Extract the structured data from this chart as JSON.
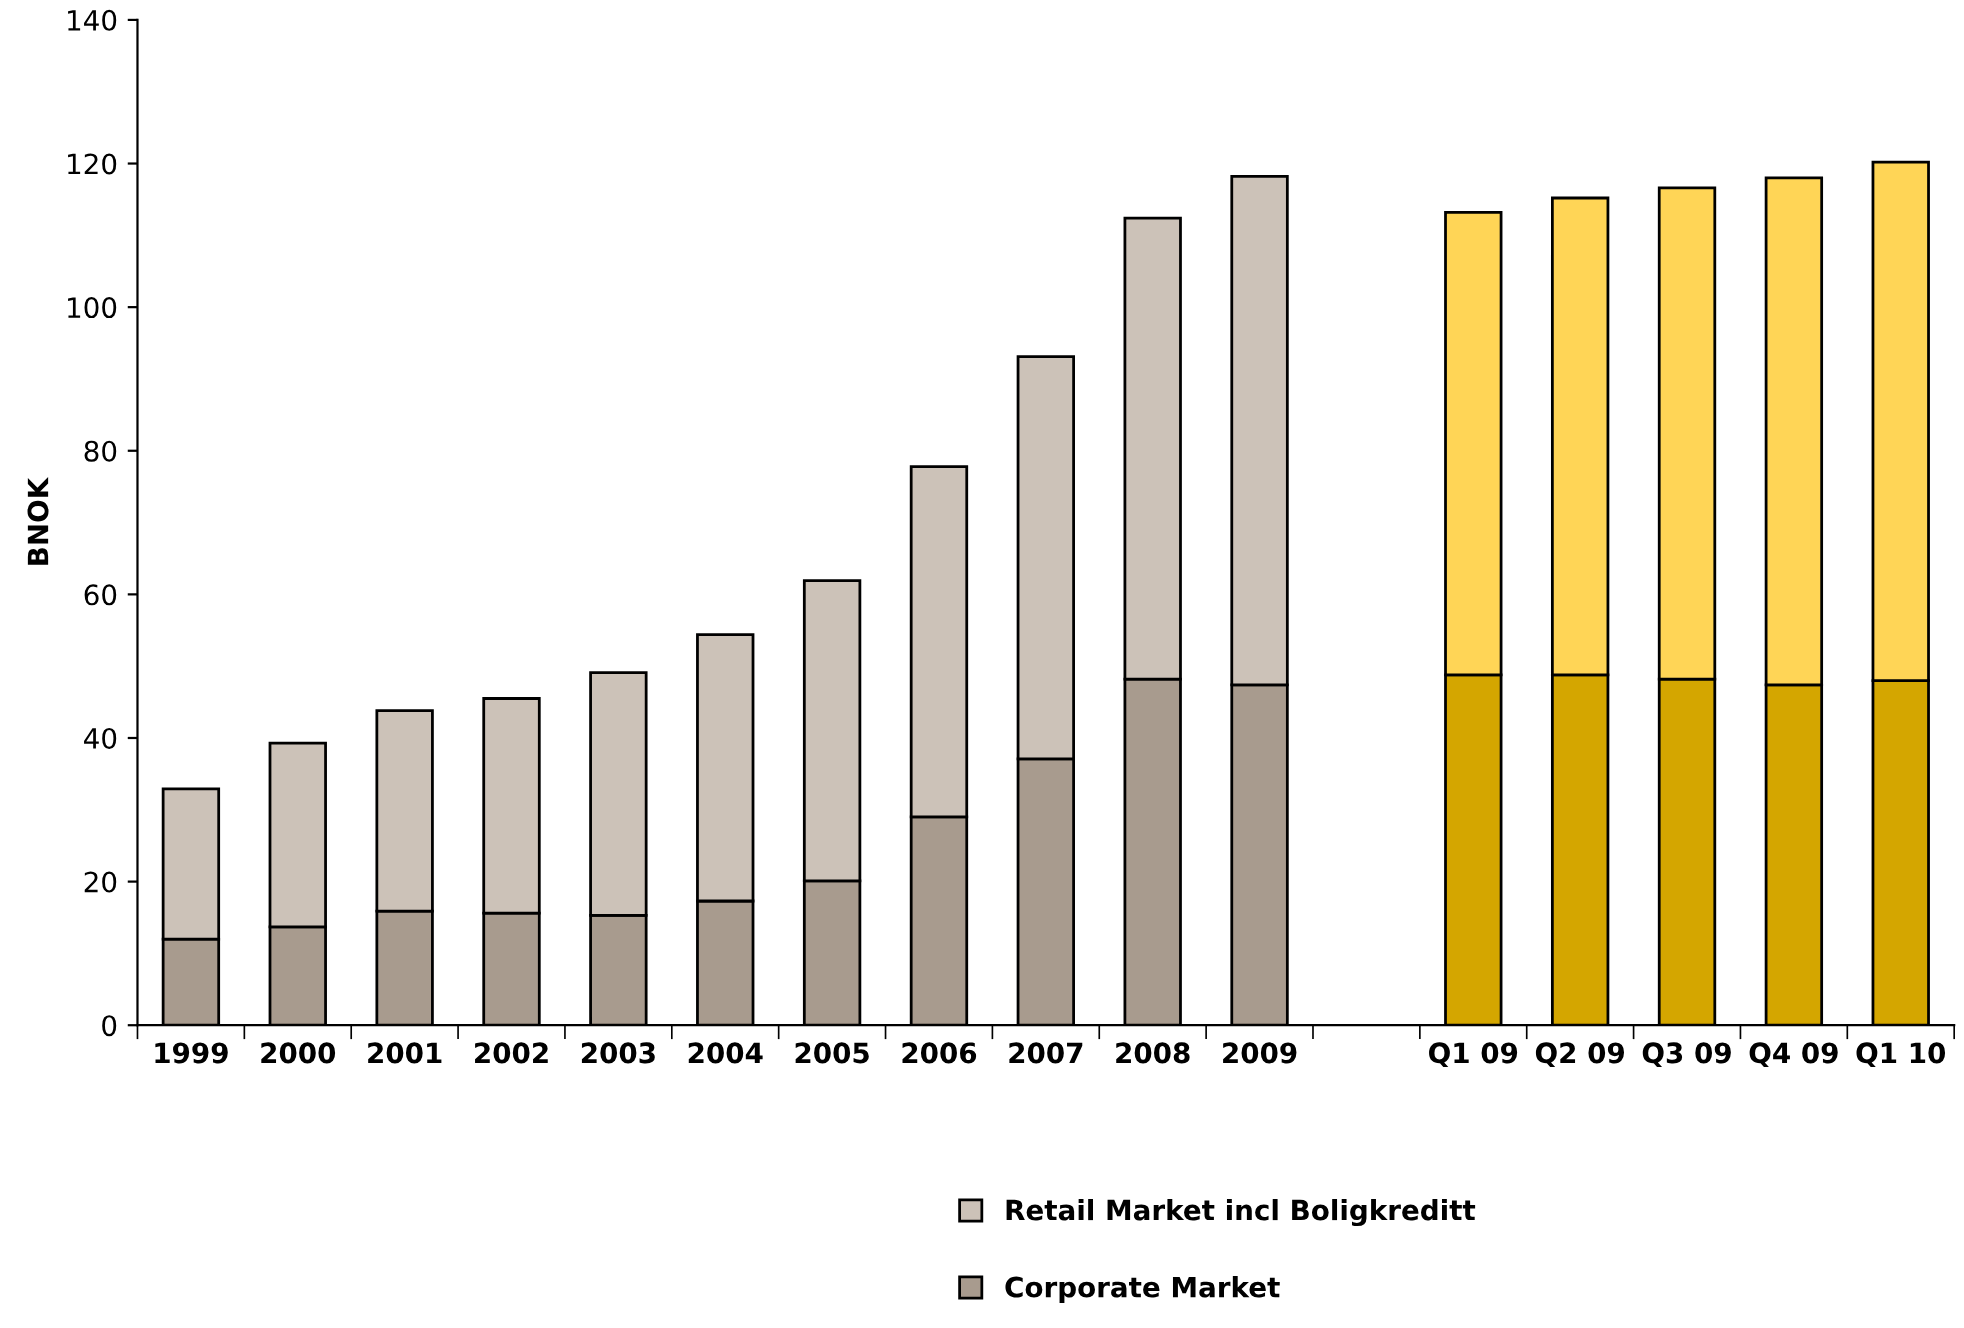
{
  "chart_data": {
    "type": "bar",
    "stacked": true,
    "ylabel": "BNOK",
    "categories": [
      "1999",
      "2000",
      "2001",
      "2002",
      "2003",
      "2004",
      "2005",
      "2006",
      "2007",
      "2008",
      "2009",
      null,
      "Q1 09",
      "Q2 09",
      "Q3 09",
      "Q4 09",
      "Q1 10"
    ],
    "series": [
      {
        "name": "Corporate Market",
        "color": "#a89b8e",
        "colors": [
          "#a89b8e",
          "#a89b8e",
          "#a89b8e",
          "#a89b8e",
          "#a89b8e",
          "#a89b8e",
          "#a89b8e",
          "#a89b8e",
          "#a89b8e",
          "#a89b8e",
          "#a89b8e",
          null,
          "#d4a600",
          "#d4a600",
          "#d4a600",
          "#d4a600",
          "#d4a600"
        ],
        "values": [
          12.0,
          13.7,
          15.9,
          15.6,
          15.3,
          17.3,
          20.1,
          29.0,
          37.1,
          48.2,
          47.4,
          null,
          48.8,
          48.8,
          48.2,
          47.4,
          48.0
        ]
      },
      {
        "name": "Retail Market incl Boligkreditt",
        "color": "#ccc2b8",
        "colors": [
          "#ccc2b8",
          "#ccc2b8",
          "#ccc2b8",
          "#ccc2b8",
          "#ccc2b8",
          "#ccc2b8",
          "#ccc2b8",
          "#ccc2b8",
          "#ccc2b8",
          "#ccc2b8",
          "#ccc2b8",
          null,
          "#ffd556",
          "#ffd556",
          "#ffd556",
          "#ffd556",
          "#ffd556"
        ],
        "values": [
          20.9,
          25.6,
          27.9,
          29.9,
          33.8,
          37.1,
          41.8,
          48.8,
          56.0,
          64.2,
          70.8,
          null,
          64.4,
          66.4,
          68.4,
          70.6,
          72.2
        ]
      }
    ],
    "ylim": [
      0,
      140
    ],
    "yticks": [
      0,
      20,
      40,
      60,
      80,
      100,
      120,
      140
    ],
    "legend": "bottom"
  }
}
